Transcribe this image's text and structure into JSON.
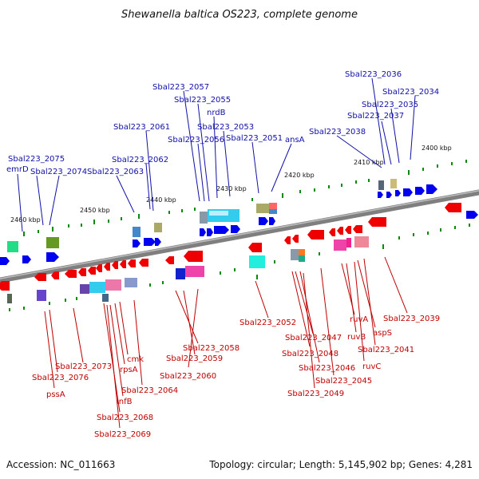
{
  "title": "Shewanella baltica OS223, complete genome",
  "footer": {
    "accession": "Accession: NC_011663",
    "topology": "Topology: circular; Length: 5,145,902 bp; Genes: 4,281"
  },
  "kbp_labels": [
    "2460 kbp",
    "2450 kbp",
    "2440 kbp",
    "2430 kbp",
    "2420 kbp",
    "2410 kbp",
    "2400 kbp"
  ],
  "forward_labels": [
    "Sbal223_2075",
    "emrD",
    "Sbal223_2074",
    "Sbal223_2063",
    "Sbal223_2062",
    "Sbal223_2061",
    "Sbal223_2057",
    "Sbal223_2055",
    "nrdB",
    "Sbal223_2053",
    "Sbal223_2056",
    "Sbal223_2051",
    "ansA",
    "Sbal223_2038",
    "Sbal223_2036",
    "Sbal223_2034",
    "Sbal223_2035",
    "Sbal223_2037"
  ],
  "reverse_labels": [
    "Sbal223_2052",
    "Sbal223_2058",
    "Sbal223_2059",
    "Sbal223_2060",
    "Sbal223_2064",
    "Sbal223_2068",
    "Sbal223_2069",
    "infB",
    "rpsA",
    "cmk",
    "Sbal223_2073",
    "Sbal223_2076",
    "pssA",
    "Sbal223_2047",
    "Sbal223_2048",
    "Sbal223_2046",
    "Sbal223_2045",
    "Sbal223_2049",
    "ruvA",
    "ruvB",
    "aspS",
    "Sbal223_2041",
    "ruvC",
    "Sbal223_2039"
  ],
  "colors": {
    "forward_label": "#1010a8",
    "reverse_label": "#c00000",
    "forward_gene": "#0000ee",
    "reverse_gene": "#ee0000",
    "backbone": "#808080",
    "tick": "#0a8a0a"
  }
}
